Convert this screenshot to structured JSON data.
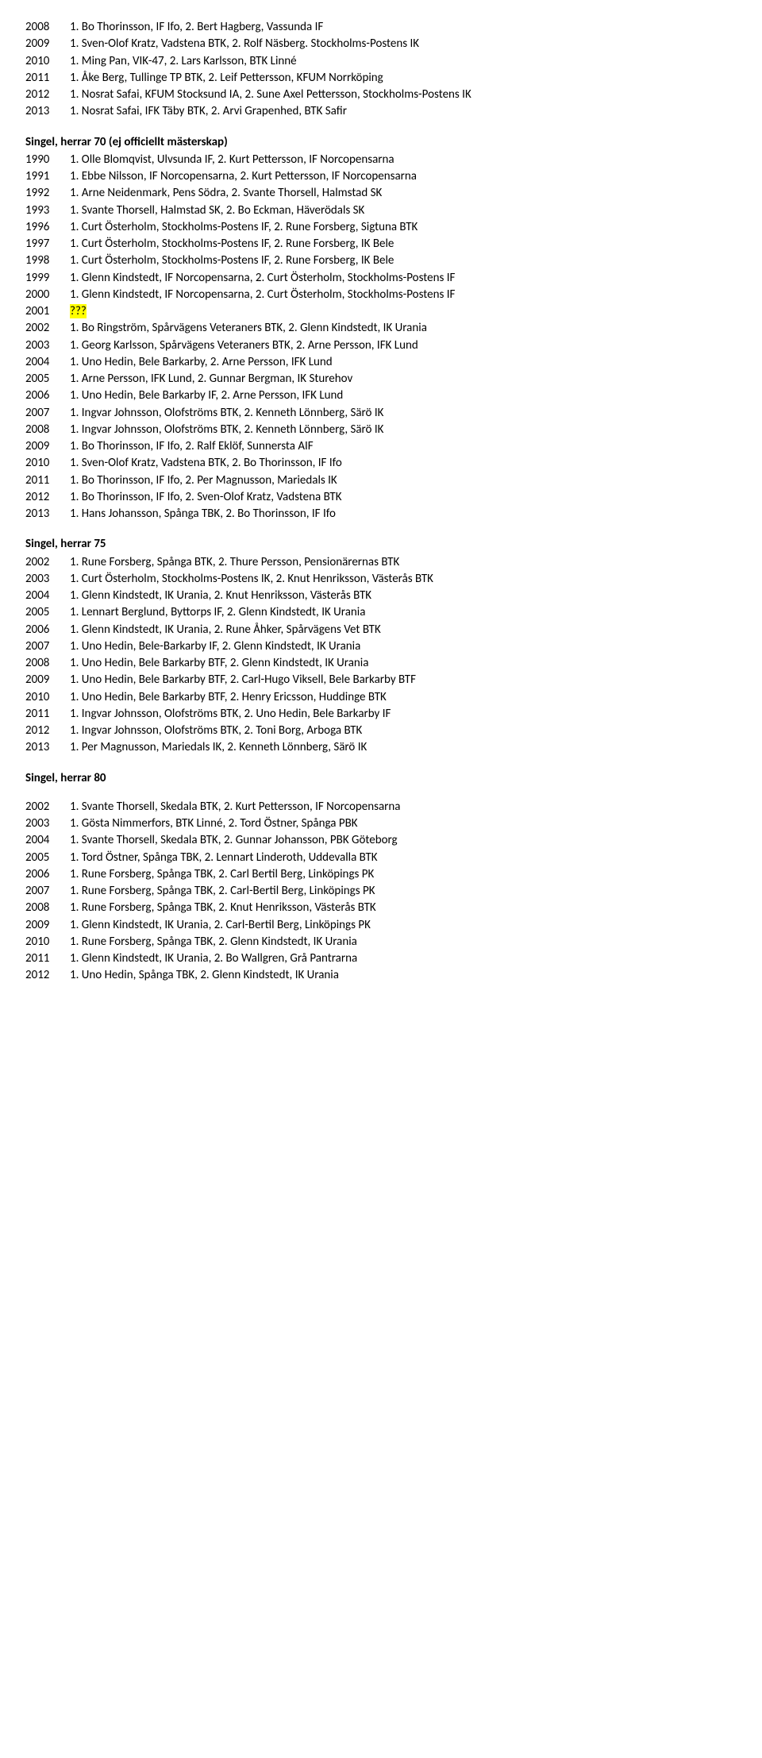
{
  "blocks": [
    {
      "rows": [
        {
          "year": "2008",
          "text": "1. Bo Thorinsson, IF Ifo, 2. Bert Hagberg, Vassunda IF"
        },
        {
          "year": "2009",
          "text": "1. Sven-Olof Kratz, Vadstena BTK, 2. Rolf Näsberg. Stockholms-Postens IK"
        },
        {
          "year": "2010",
          "text": "1. Ming Pan, VIK-47, 2. Lars Karlsson, BTK Linné"
        },
        {
          "year": "2011",
          "text": "1. Åke Berg, Tullinge TP BTK, 2. Leif Pettersson, KFUM Norrköping"
        },
        {
          "year": "2012",
          "text": "1. Nosrat Safai, KFUM Stocksund IA, 2. Sune Axel Pettersson, Stockholms-Postens IK"
        },
        {
          "year": "2013",
          "text": "1. Nosrat Safai, IFK Täby BTK, 2. Arvi Grapenhed, BTK Safir"
        }
      ]
    },
    {
      "title": "Singel, herrar 70 (ej officiellt mästerskap)",
      "rows": [
        {
          "year": "1990",
          "text": "1. Olle Blomqvist, Ulvsunda IF, 2. Kurt Pettersson, IF Norcopensarna"
        },
        {
          "year": "1991",
          "text": "1. Ebbe Nilsson, IF Norcopensarna, 2. Kurt Pettersson, IF Norcopensarna"
        },
        {
          "year": "1992",
          "text": "1. Arne Neidenmark, Pens Södra, 2. Svante Thorsell, Halmstad SK"
        },
        {
          "year": "1993",
          "text": "1. Svante Thorsell, Halmstad SK, 2. Bo Eckman, Häverödals SK"
        },
        {
          "year": "1996",
          "text": "1. Curt Österholm, Stockholms-Postens IF, 2. Rune Forsberg, Sigtuna BTK"
        },
        {
          "year": "1997",
          "text": "1. Curt Österholm, Stockholms-Postens IF, 2. Rune Forsberg, IK Bele"
        },
        {
          "year": "1998",
          "text": "1. Curt Österholm, Stockholms-Postens IF, 2. Rune Forsberg, IK Bele"
        },
        {
          "year": "1999",
          "text": "1. Glenn Kindstedt, IF Norcopensarna, 2. Curt Österholm, Stockholms-Postens IF"
        },
        {
          "year": "2000",
          "text": "1. Glenn Kindstedt, IF Norcopensarna, 2. Curt Österholm, Stockholms-Postens IF"
        },
        {
          "year": "2001",
          "text": "???",
          "highlight": true
        },
        {
          "year": "2002",
          "text": "1. Bo Ringström, Spårvägens Veteraners BTK, 2. Glenn Kindstedt, IK Urania"
        },
        {
          "year": "2003",
          "text": "1. Georg Karlsson, Spårvägens Veteraners BTK, 2. Arne Persson, IFK Lund"
        },
        {
          "year": "2004",
          "text": "1. Uno Hedin, Bele Barkarby, 2. Arne Persson, IFK Lund"
        },
        {
          "year": "2005",
          "text": "1. Arne Persson, IFK Lund, 2. Gunnar Bergman, IK Sturehov"
        },
        {
          "year": "2006",
          "text": "1. Uno Hedin, Bele Barkarby IF, 2. Arne Persson, IFK Lund"
        },
        {
          "year": "2007",
          "text": "1. Ingvar Johnsson, Olofströms BTK, 2. Kenneth Lönnberg, Särö IK"
        },
        {
          "year": "2008",
          "text": "1. Ingvar Johnsson, Olofströms BTK, 2. Kenneth Lönnberg, Särö IK"
        },
        {
          "year": "2009",
          "text": "1. Bo Thorinsson, IF Ifo, 2. Ralf Eklöf, Sunnersta AIF"
        },
        {
          "year": "2010",
          "text": "1. Sven-Olof Kratz, Vadstena BTK, 2. Bo Thorinsson, IF Ifo"
        },
        {
          "year": "2011",
          "text": "1. Bo Thorinsson, IF Ifo, 2. Per Magnusson, Mariedals IK"
        },
        {
          "year": "2012",
          "text": "1. Bo Thorinsson, IF Ifo, 2. Sven-Olof Kratz, Vadstena BTK"
        },
        {
          "year": "2013",
          "text": "1. Hans Johansson, Spånga TBK, 2. Bo Thorinsson, IF Ifo"
        }
      ]
    },
    {
      "title": "Singel, herrar 75",
      "rows": [
        {
          "year": "2002",
          "text": "1. Rune Forsberg, Spånga BTK, 2. Thure Persson, Pensionärernas BTK"
        },
        {
          "year": "2003",
          "text": "1. Curt Österholm, Stockholms-Postens IK, 2. Knut Henriksson, Västerås BTK"
        },
        {
          "year": "2004",
          "text": "1. Glenn Kindstedt, IK Urania, 2. Knut Henriksson, Västerås BTK"
        },
        {
          "year": "2005",
          "text": "1. Lennart Berglund, Byttorps IF, 2. Glenn Kindstedt, IK Urania"
        },
        {
          "year": "2006",
          "text": "1. Glenn Kindstedt, IK Urania, 2. Rune Åhker, Spårvägens Vet BTK"
        },
        {
          "year": "2007",
          "text": "1. Uno Hedin, Bele-Barkarby IF, 2. Glenn Kindstedt, IK Urania"
        },
        {
          "year": "2008",
          "text": "1. Uno Hedin, Bele Barkarby BTF, 2. Glenn Kindstedt, IK Urania"
        },
        {
          "year": "2009",
          "text": "1. Uno Hedin, Bele Barkarby BTF, 2. Carl-Hugo Viksell, Bele Barkarby BTF"
        },
        {
          "year": "2010",
          "text": "1. Uno Hedin, Bele Barkarby BTF, 2. Henry Ericsson, Huddinge BTK"
        },
        {
          "year": "2011",
          "text": "1. Ingvar Johnsson, Olofströms BTK, 2. Uno Hedin, Bele Barkarby IF"
        },
        {
          "year": "2012",
          "text": "1. Ingvar Johnsson, Olofströms BTK, 2. Toni Borg, Arboga BTK"
        },
        {
          "year": "2013",
          "text": "1.  Per Magnusson, Mariedals IK, 2. Kenneth Lönnberg, Särö IK"
        }
      ]
    },
    {
      "title": "Singel, herrar 80",
      "gapAfterTitle": true,
      "rows": [
        {
          "year": "2002",
          "text": "1. Svante Thorsell, Skedala BTK, 2. Kurt Pettersson, IF Norcopensarna"
        },
        {
          "year": "2003",
          "text": "1. Gösta Nimmerfors, BTK Linné, 2. Tord Östner, Spånga PBK"
        },
        {
          "year": "2004",
          "text": "1. Svante Thorsell, Skedala BTK, 2. Gunnar Johansson, PBK Göteborg"
        },
        {
          "year": "2005",
          "text": "1. Tord Östner, Spånga TBK, 2. Lennart Linderoth, Uddevalla BTK"
        },
        {
          "year": "2006",
          "text": "1. Rune Forsberg, Spånga TBK, 2. Carl Bertil Berg, Linköpings PK"
        },
        {
          "year": "2007",
          "text": "1. Rune Forsberg, Spånga TBK, 2. Carl-Bertil Berg, Linköpings PK"
        },
        {
          "year": "2008",
          "text": "1. Rune Forsberg, Spånga TBK, 2. Knut Henriksson, Västerås BTK"
        },
        {
          "year": "2009",
          "text": "1. Glenn Kindstedt, IK Urania, 2. Carl-Bertil Berg, Linköpings PK"
        },
        {
          "year": "2010",
          "text": "1. Rune Forsberg, Spånga TBK, 2. Glenn Kindstedt, IK Urania"
        },
        {
          "year": "2011",
          "text": "1. Glenn Kindstedt, IK Urania, 2. Bo Wallgren, Grå Pantrarna"
        },
        {
          "year": "2012",
          "text": "1. Uno Hedin, Spånga TBK, 2. Glenn Kindstedt, IK Urania"
        }
      ]
    }
  ]
}
